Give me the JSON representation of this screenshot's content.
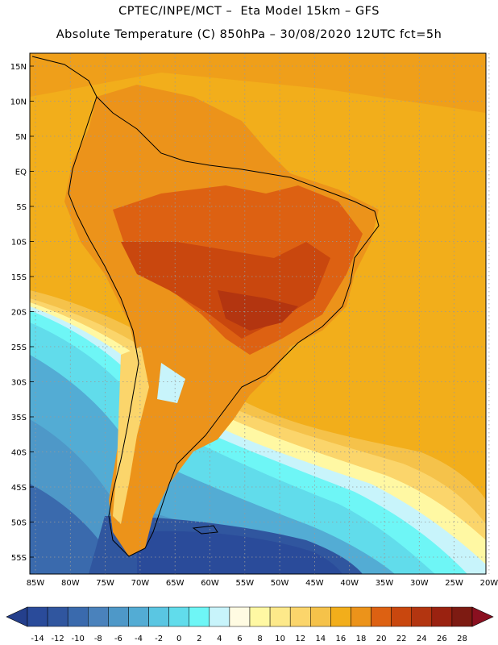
{
  "title_line1": "CPTEC/INPE/MCT –  Eta Model 15km – GFS",
  "title_line2": "Absolute Temperature (C) 850hPa – 30/08/2020 12UTC fct=5h",
  "map": {
    "lat_labels": [
      "15N",
      "10N",
      "5N",
      "EQ",
      "5S",
      "10S",
      "15S",
      "20S",
      "25S",
      "30S",
      "35S",
      "40S",
      "45S",
      "50S",
      "55S"
    ],
    "lon_labels": [
      "85W",
      "80W",
      "75W",
      "70W",
      "65W",
      "60W",
      "55W",
      "50W",
      "45W",
      "40W",
      "35W",
      "30W",
      "25W",
      "20W"
    ],
    "grid": "dotted"
  },
  "colorbar": {
    "labels": [
      "-14",
      "-12",
      "-10",
      "-8",
      "-6",
      "-4",
      "-2",
      "0",
      "2",
      "4",
      "6",
      "8",
      "10",
      "12",
      "14",
      "16",
      "18",
      "20",
      "22",
      "24",
      "26",
      "28"
    ],
    "colors": [
      "#2a4b9a",
      "#30569f",
      "#3a6aad",
      "#4a82bc",
      "#4e98c8",
      "#53acd4",
      "#5ac6e2",
      "#61dceb",
      "#6ef6f6",
      "#c8f4fb",
      "#fffbe2",
      "#fff8a3",
      "#fde98a",
      "#fbd56b",
      "#f5c24a",
      "#f2ae1b",
      "#ec931a",
      "#dd6112",
      "#c9470e",
      "#b33510",
      "#9a2210",
      "#7d1b12"
    ],
    "low_arrow_color": "#243f8c",
    "high_arrow_color": "#8a1020"
  }
}
